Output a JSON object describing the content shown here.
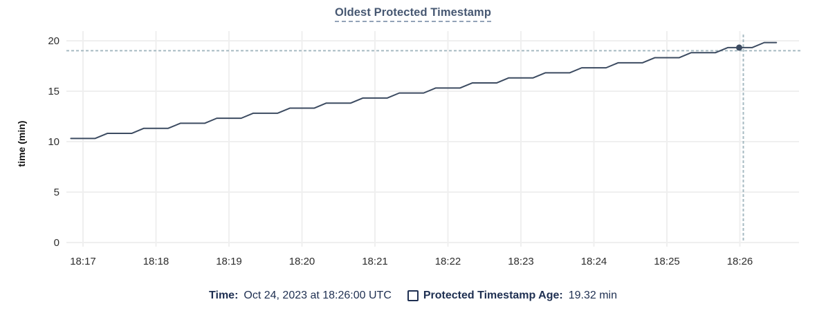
{
  "title": "Oldest Protected Timestamp",
  "chart_data": {
    "type": "line",
    "title": "Oldest Protected Timestamp",
    "xlabel": "",
    "ylabel": "time (min)",
    "ylim": [
      0,
      20
    ],
    "y_ticks": [
      0,
      5,
      10,
      15,
      20
    ],
    "x_ticks": [
      "18:17",
      "18:18",
      "18:19",
      "18:20",
      "18:21",
      "18:22",
      "18:23",
      "18:24",
      "18:25",
      "18:26"
    ],
    "grid": true,
    "legend_position": "bottom",
    "series": [
      {
        "name": "Protected Timestamp Age",
        "unit": "min",
        "points": [
          [
            "18:16:50",
            10.32
          ],
          [
            "18:17:00",
            10.32
          ],
          [
            "18:17:10",
            10.32
          ],
          [
            "18:17:20",
            10.82
          ],
          [
            "18:17:30",
            10.82
          ],
          [
            "18:17:40",
            10.82
          ],
          [
            "18:17:50",
            11.32
          ],
          [
            "18:18:00",
            11.32
          ],
          [
            "18:18:10",
            11.32
          ],
          [
            "18:18:20",
            11.82
          ],
          [
            "18:18:30",
            11.82
          ],
          [
            "18:18:40",
            11.82
          ],
          [
            "18:18:50",
            12.32
          ],
          [
            "18:19:00",
            12.32
          ],
          [
            "18:19:10",
            12.32
          ],
          [
            "18:19:20",
            12.82
          ],
          [
            "18:19:30",
            12.82
          ],
          [
            "18:19:40",
            12.82
          ],
          [
            "18:19:50",
            13.32
          ],
          [
            "18:20:00",
            13.32
          ],
          [
            "18:20:10",
            13.32
          ],
          [
            "18:20:20",
            13.82
          ],
          [
            "18:20:30",
            13.82
          ],
          [
            "18:20:40",
            13.82
          ],
          [
            "18:20:50",
            14.32
          ],
          [
            "18:21:00",
            14.32
          ],
          [
            "18:21:10",
            14.32
          ],
          [
            "18:21:20",
            14.82
          ],
          [
            "18:21:30",
            14.82
          ],
          [
            "18:21:40",
            14.82
          ],
          [
            "18:21:50",
            15.32
          ],
          [
            "18:22:00",
            15.32
          ],
          [
            "18:22:10",
            15.32
          ],
          [
            "18:22:20",
            15.82
          ],
          [
            "18:22:30",
            15.82
          ],
          [
            "18:22:40",
            15.82
          ],
          [
            "18:22:50",
            16.32
          ],
          [
            "18:23:00",
            16.32
          ],
          [
            "18:23:10",
            16.32
          ],
          [
            "18:23:20",
            16.82
          ],
          [
            "18:23:30",
            16.82
          ],
          [
            "18:23:40",
            16.82
          ],
          [
            "18:23:50",
            17.32
          ],
          [
            "18:24:00",
            17.32
          ],
          [
            "18:24:10",
            17.32
          ],
          [
            "18:24:20",
            17.82
          ],
          [
            "18:24:30",
            17.82
          ],
          [
            "18:24:40",
            17.82
          ],
          [
            "18:24:50",
            18.32
          ],
          [
            "18:25:00",
            18.32
          ],
          [
            "18:25:10",
            18.32
          ],
          [
            "18:25:20",
            18.82
          ],
          [
            "18:25:30",
            18.82
          ],
          [
            "18:25:40",
            18.82
          ],
          [
            "18:25:50",
            19.32
          ],
          [
            "18:26:00",
            19.32
          ],
          [
            "18:26:10",
            19.32
          ],
          [
            "18:26:20",
            19.82
          ],
          [
            "18:26:30",
            19.82
          ]
        ]
      }
    ],
    "hover": {
      "t": "18:26:00",
      "v": 19.32
    }
  },
  "tooltip": {
    "time_label": "Time:",
    "time_value": "Oct 24, 2023 at 18:26:00 UTC",
    "series_label": "Protected Timestamp Age:",
    "series_value": "19.32 min"
  },
  "colors": {
    "line": "#3c4b61",
    "crosshair": "#a6bac2",
    "grid": "#efefef",
    "title": "#475872",
    "title-underline": "#93a3b8",
    "legend-text": "#1e2f51",
    "tick-text": "#2d2d2d"
  }
}
